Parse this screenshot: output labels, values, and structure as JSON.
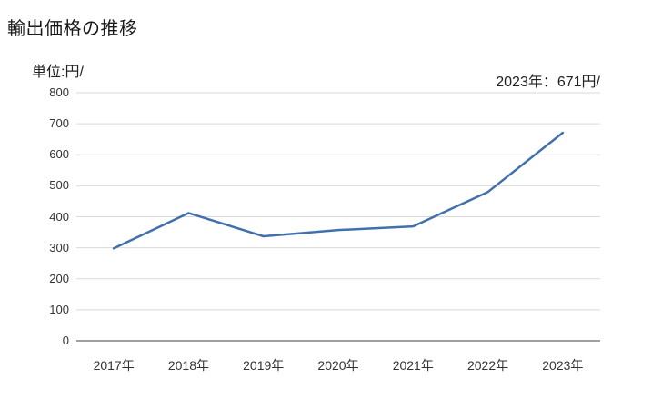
{
  "header": {
    "title": "輸出価格の推移"
  },
  "chart_data": {
    "type": "line",
    "title": "輸出価格の推移",
    "unit_label": "単位:円/",
    "annotation": "2023年：671円/",
    "categories": [
      "2017年",
      "2018年",
      "2019年",
      "2020年",
      "2021年",
      "2022年",
      "2023年"
    ],
    "series": [
      {
        "name": "輸出価格",
        "values": [
          298,
          412,
          337,
          357,
          369,
          480,
          671
        ]
      }
    ],
    "latest_point": {
      "year": "2023年",
      "value": 671,
      "unit": "円/"
    },
    "ylim": [
      0,
      800
    ],
    "y_ticks": [
      800,
      700,
      600,
      500,
      400,
      300,
      200,
      100,
      0
    ],
    "grid": "horizontal",
    "legend": "none",
    "colors": {
      "line": "#4170ac",
      "gridline": "#d9d9d9",
      "axis": "#808080",
      "label": "#333333",
      "title": "#1a1a1a"
    }
  }
}
